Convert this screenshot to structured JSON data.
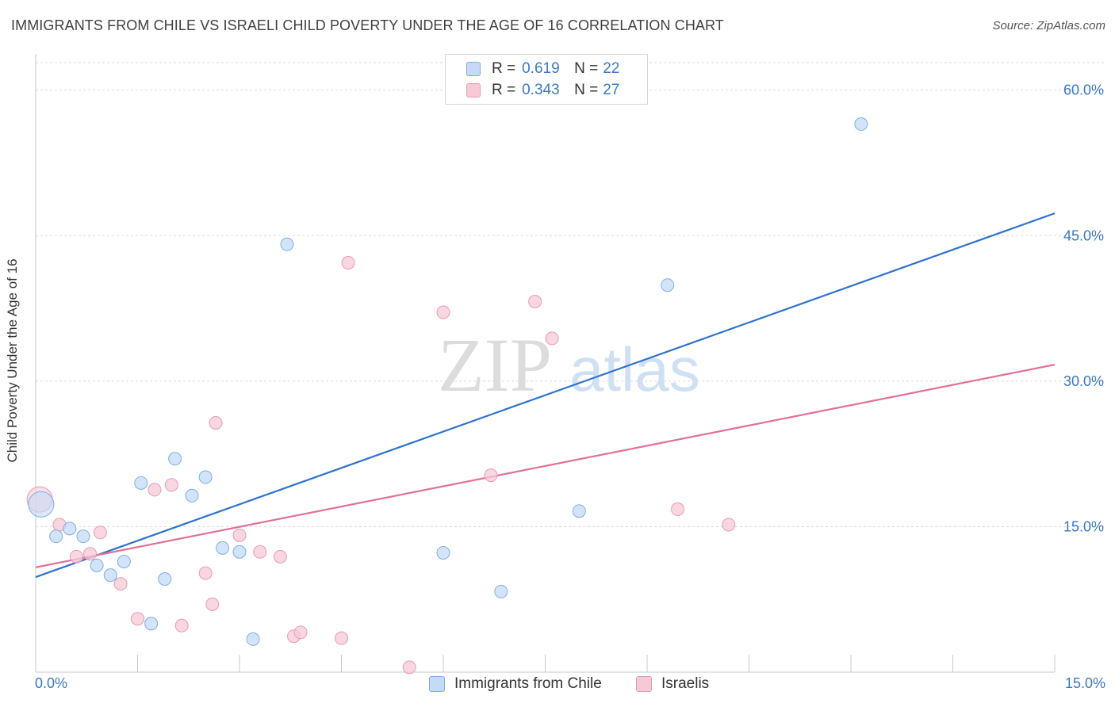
{
  "title": "IMMIGRANTS FROM CHILE VS ISRAELI CHILD POVERTY UNDER THE AGE OF 16 CORRELATION CHART",
  "source": "Source: ZipAtlas.com",
  "watermark": {
    "zip": "ZIP",
    "atlas": "atlas"
  },
  "legend": {
    "r_label": "R =",
    "n_label": "N =",
    "rows": [
      {
        "r": "0.619",
        "n": "22"
      },
      {
        "r": "0.343",
        "n": "27"
      }
    ]
  },
  "chart_data": {
    "type": "scatter",
    "xlabel": "",
    "ylabel": "Child Poverty Under the Age of 16",
    "xlim": [
      0,
      15
    ],
    "ylim": [
      0,
      63
    ],
    "x_tick_labels": [
      "0.0%",
      "15.0%"
    ],
    "y_ticks": [
      15,
      30,
      45,
      60
    ],
    "y_tick_labels": [
      "15.0%",
      "30.0%",
      "45.0%",
      "60.0%"
    ],
    "grid": true,
    "legend_position": "top-center",
    "series": [
      {
        "name": "Immigrants from Chile",
        "color": "#7baee6",
        "fill": "#c5dbf5",
        "line_color": "#2f72cf",
        "trend": [
          [
            0,
            9.8
          ],
          [
            15,
            47.3
          ]
        ],
        "points": [
          [
            0.08,
            17.3
          ],
          [
            0.3,
            14.0
          ],
          [
            0.5,
            14.8
          ],
          [
            0.7,
            14.0
          ],
          [
            0.9,
            11.0
          ],
          [
            1.1,
            10.0
          ],
          [
            1.3,
            11.4
          ],
          [
            1.55,
            19.5
          ],
          [
            1.7,
            5.0
          ],
          [
            1.9,
            9.6
          ],
          [
            2.05,
            22.0
          ],
          [
            2.3,
            18.2
          ],
          [
            2.5,
            20.1
          ],
          [
            2.75,
            12.8
          ],
          [
            3.0,
            12.4
          ],
          [
            3.2,
            3.4
          ],
          [
            3.7,
            44.1
          ],
          [
            6.0,
            12.3
          ],
          [
            6.85,
            8.3
          ],
          [
            8.0,
            16.6
          ],
          [
            9.3,
            39.9
          ],
          [
            12.15,
            56.5
          ]
        ]
      },
      {
        "name": "Israelis",
        "color": "#e89ab2",
        "fill": "#f7c9d7",
        "line_color": "#e0709a",
        "trend": [
          [
            0,
            10.8
          ],
          [
            15,
            31.7
          ]
        ],
        "points": [
          [
            0.06,
            17.8
          ],
          [
            0.35,
            15.2
          ],
          [
            0.6,
            11.9
          ],
          [
            0.8,
            12.2
          ],
          [
            0.95,
            14.4
          ],
          [
            1.25,
            9.1
          ],
          [
            1.5,
            5.5
          ],
          [
            1.75,
            18.8
          ],
          [
            2.0,
            19.3
          ],
          [
            2.15,
            4.8
          ],
          [
            2.5,
            10.2
          ],
          [
            2.6,
            7.0
          ],
          [
            2.65,
            25.7
          ],
          [
            3.0,
            14.1
          ],
          [
            3.3,
            12.4
          ],
          [
            3.6,
            11.9
          ],
          [
            3.8,
            3.7
          ],
          [
            3.9,
            4.1
          ],
          [
            4.5,
            3.5
          ],
          [
            4.6,
            42.2
          ],
          [
            5.5,
            0.5
          ],
          [
            6.0,
            37.1
          ],
          [
            6.7,
            20.3
          ],
          [
            7.35,
            38.2
          ],
          [
            7.6,
            34.4
          ],
          [
            9.45,
            16.8
          ],
          [
            10.2,
            15.2
          ]
        ]
      }
    ]
  }
}
